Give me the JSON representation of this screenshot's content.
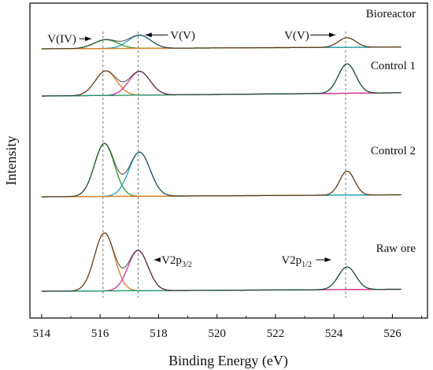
{
  "chart_data": {
    "type": "line",
    "xlabel": "Binding Energy (eV)",
    "ylabel": "Intensity",
    "xlim": [
      513.6,
      527.2
    ],
    "xticks": [
      514,
      516,
      518,
      520,
      522,
      524,
      526
    ],
    "yticks_shown": false,
    "grid": false,
    "legend": "none",
    "reference_lines_ev": [
      516.1,
      517.3,
      524.4
    ],
    "panels": [
      {
        "name": "Bioreactor",
        "x_range": [
          514,
          526.3
        ],
        "baseline": [
          0.0,
          0.07
        ],
        "peaks": [
          {
            "center": 516.2,
            "height": 0.35,
            "fwhm": 0.95,
            "color": "#2aa02a"
          },
          {
            "center": 517.35,
            "height": 0.52,
            "fwhm": 0.9,
            "color": "#1f9fbf"
          },
          {
            "center": 524.45,
            "height": 0.38,
            "fwhm": 0.7,
            "color": "#e07b25"
          }
        ],
        "labels": [
          {
            "text": "V(IV)",
            "x": 514.2,
            "y": 0.4,
            "arrow": true,
            "arrow_to": 515.7
          },
          {
            "text": "V(V)",
            "x": 518.4,
            "y": 0.55,
            "arrow": true,
            "arrow_to": 517.55
          },
          {
            "text": "V(V)",
            "x": 522.3,
            "y": 0.55,
            "arrow": true,
            "arrow_to": 524.05
          }
        ]
      },
      {
        "name": "Control 1",
        "x_range": [
          514,
          526.3
        ],
        "baseline": [
          0.0,
          0.08
        ],
        "peaks": [
          {
            "center": 516.2,
            "height": 0.6,
            "fwhm": 0.85,
            "color": "#e07b25"
          },
          {
            "center": 517.35,
            "height": 0.58,
            "fwhm": 0.85,
            "color": "#d0309a"
          },
          {
            "center": 524.45,
            "height": 0.72,
            "fwhm": 0.7,
            "color": "#1a9a73"
          }
        ]
      },
      {
        "name": "Control 2",
        "x_range": [
          514,
          526.3
        ],
        "baseline": [
          0.0,
          0.08
        ],
        "peaks": [
          {
            "center": 516.15,
            "height": 2.1,
            "fwhm": 0.8,
            "color": "#2aa02a"
          },
          {
            "center": 517.35,
            "height": 1.75,
            "fwhm": 0.85,
            "color": "#1f9fbf"
          },
          {
            "center": 524.45,
            "height": 0.95,
            "fwhm": 0.6,
            "color": "#e07b25"
          }
        ]
      },
      {
        "name": "Raw ore",
        "x_range": [
          514,
          526.3
        ],
        "baseline": [
          0.0,
          0.08
        ],
        "peaks": [
          {
            "center": 516.15,
            "height": 2.3,
            "fwhm": 0.8,
            "color": "#e07b25"
          },
          {
            "center": 517.3,
            "height": 1.6,
            "fwhm": 0.8,
            "color": "#d0309a"
          },
          {
            "center": 524.45,
            "height": 0.9,
            "fwhm": 0.7,
            "color": "#1a9a73"
          }
        ],
        "labels": [
          {
            "text_main": "V2p",
            "sub": "3/2",
            "x": 518.1,
            "y": 1.25,
            "arrow": true,
            "arrow_to": 517.85
          },
          {
            "text_main": "V2p",
            "sub": "1/2",
            "x": 522.2,
            "y": 1.25,
            "arrow": true,
            "arrow_to": 523.9
          }
        ]
      }
    ]
  }
}
